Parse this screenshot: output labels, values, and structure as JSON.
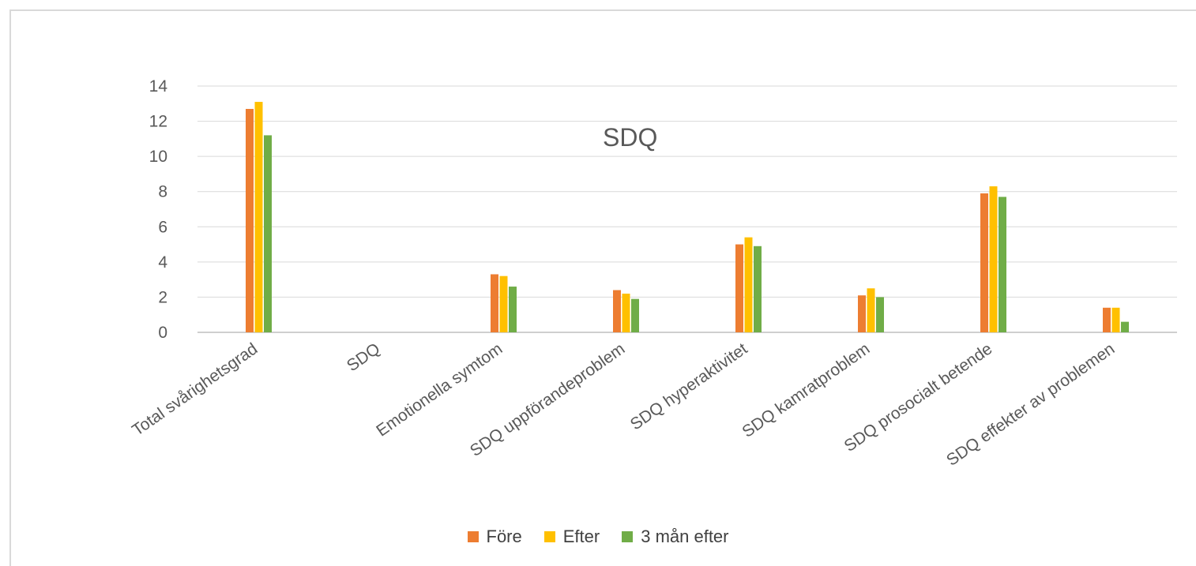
{
  "chart_data": {
    "type": "bar",
    "title": "SDQ",
    "categories": [
      "Total svårighetsgrad",
      "SDQ",
      "Emotionella symtom",
      "SDQ uppförandeproblem",
      "SDQ hyperaktivitet",
      "SDQ kamratproblem",
      "SDQ prosocialt betende",
      "SDQ effekter av problemen"
    ],
    "series": [
      {
        "name": "Före",
        "color": "#ED7D31",
        "values": [
          12.7,
          null,
          3.3,
          2.4,
          5.0,
          2.1,
          7.9,
          1.4
        ]
      },
      {
        "name": "Efter",
        "color": "#FFC000",
        "values": [
          13.1,
          null,
          3.2,
          2.2,
          5.4,
          2.5,
          8.3,
          1.4
        ]
      },
      {
        "name": "3 mån efter",
        "color": "#70AD47",
        "values": [
          11.2,
          null,
          2.6,
          1.9,
          4.9,
          2.0,
          7.7,
          0.6
        ]
      }
    ],
    "ylim": [
      0,
      14
    ],
    "yticks": [
      0,
      2,
      4,
      6,
      8,
      10,
      12,
      14
    ],
    "grid": true,
    "legend_position": "bottom",
    "xlabel": "",
    "ylabel": ""
  }
}
